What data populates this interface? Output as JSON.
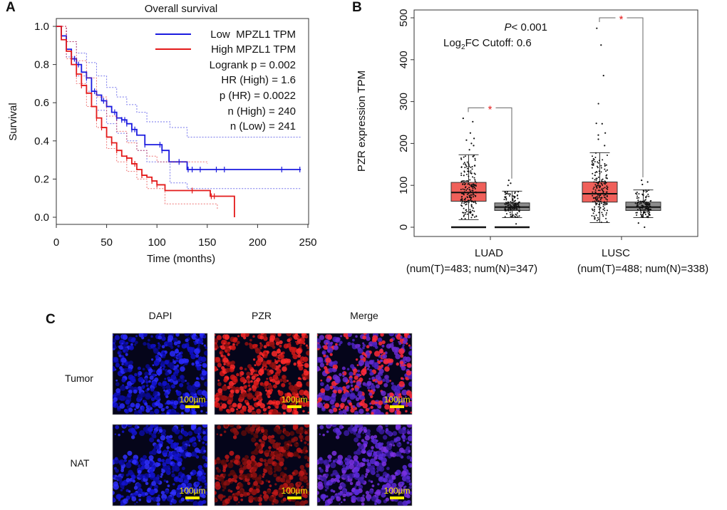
{
  "panels": {
    "a": "A",
    "b": "B",
    "c": "C"
  },
  "chart_data": [
    {
      "type": "line",
      "title": "Overall survival",
      "xlabel": "Time (months)",
      "ylabel": "Survival",
      "xlim": [
        0,
        250
      ],
      "ylim": [
        0,
        1
      ],
      "xticks": [
        "0",
        "50",
        "100",
        "150",
        "200",
        "250"
      ],
      "yticks": [
        "0.0",
        "0.2",
        "0.4",
        "0.6",
        "0.8",
        "1.0"
      ],
      "legend_position": "top-right",
      "legend": [
        "Low  MPZL1 TPM",
        "High MPZL1 TPM"
      ],
      "stats": [
        "Logrank p = 0.002",
        "HR (High) = 1.6",
        "p (HR) = 0.0022",
        "n (High) = 240",
        "n (Low) = 241"
      ],
      "colors": {
        "low": "#1a1adf",
        "high": "#e31a1a"
      },
      "series": [
        {
          "name": "Low  MPZL1 TPM",
          "x": [
            0,
            5,
            10,
            15,
            20,
            25,
            30,
            35,
            40,
            45,
            50,
            55,
            60,
            65,
            70,
            75,
            80,
            88,
            105,
            112,
            130,
            243
          ],
          "y": [
            1,
            0.95,
            0.88,
            0.83,
            0.8,
            0.76,
            0.73,
            0.66,
            0.64,
            0.61,
            0.58,
            0.55,
            0.52,
            0.51,
            0.49,
            0.46,
            0.43,
            0.38,
            0.35,
            0.29,
            0.25,
            0.25
          ],
          "censored": [
            18,
            20,
            22,
            30,
            35,
            38,
            47,
            58,
            60,
            65,
            68,
            70,
            75,
            78,
            88,
            103,
            105,
            122,
            131,
            135,
            143,
            159,
            167,
            224,
            242
          ],
          "ci_upper": {
            "x": [
              0,
              10,
              20,
              30,
              40,
              50,
              60,
              70,
              80,
              90,
              113,
              130,
              243
            ],
            "y": [
              1,
              0.92,
              0.86,
              0.81,
              0.74,
              0.68,
              0.63,
              0.59,
              0.55,
              0.5,
              0.47,
              0.42,
              0.42
            ]
          },
          "ci_lower": {
            "x": [
              0,
              10,
              20,
              30,
              40,
              50,
              60,
              70,
              80,
              90,
              113,
              130,
              243
            ],
            "y": [
              1,
              0.84,
              0.74,
              0.66,
              0.56,
              0.49,
              0.44,
              0.4,
              0.35,
              0.29,
              0.18,
              0.15,
              0.15
            ]
          }
        },
        {
          "name": "High MPZL1 TPM",
          "x": [
            0,
            5,
            10,
            15,
            20,
            25,
            30,
            35,
            40,
            45,
            50,
            55,
            60,
            65,
            70,
            75,
            80,
            85,
            90,
            95,
            100,
            108,
            153,
            177,
            177
          ],
          "y": [
            1,
            0.93,
            0.87,
            0.8,
            0.75,
            0.69,
            0.65,
            0.58,
            0.52,
            0.47,
            0.42,
            0.39,
            0.35,
            0.32,
            0.31,
            0.28,
            0.25,
            0.22,
            0.21,
            0.19,
            0.17,
            0.14,
            0.11,
            0.11,
            0
          ],
          "censored": [
            20,
            25,
            40,
            45,
            55,
            60,
            70,
            78,
            85,
            95,
            100,
            135,
            154,
            157
          ],
          "ci_upper": {
            "x": [
              0,
              10,
              20,
              30,
              40,
              50,
              60,
              70,
              80,
              90,
              100,
              150
            ],
            "y": [
              1,
              0.92,
              0.82,
              0.73,
              0.63,
              0.53,
              0.45,
              0.39,
              0.35,
              0.32,
              0.29,
              0.28
            ]
          },
          "ci_lower": {
            "x": [
              0,
              10,
              20,
              30,
              40,
              50,
              60,
              70,
              80,
              90,
              108,
              153,
              160
            ],
            "y": [
              1,
              0.83,
              0.7,
              0.58,
              0.47,
              0.36,
              0.29,
              0.24,
              0.2,
              0.15,
              0.07,
              0.07,
              0.04
            ]
          }
        }
      ]
    },
    {
      "type": "box",
      "ylabel": "PZR expression TPM",
      "ylim": [
        0,
        500
      ],
      "yticks": [
        "0",
        "100",
        "200",
        "300",
        "400",
        "500"
      ],
      "annotation_p": "< 0.001",
      "annotation_p_italic": "P",
      "annotation_fc_prefix": "Log",
      "annotation_fc_sub": "2",
      "annotation_fc_suffix": "FC Cutoff: 0.6",
      "significance": "*",
      "colors": {
        "tumor": "#f0605a",
        "normal": "#8c8c8c",
        "star": "#e31a1a"
      },
      "categories": [
        {
          "name": "LUAD",
          "sub": "(num(T)=483; num(N)=347)",
          "tumor": {
            "n": 483,
            "min": 18,
            "q1": 62,
            "median": 83,
            "q3": 107,
            "max": 173,
            "outliers": [
              260,
              252,
              225,
              212,
              208,
              200,
              195,
              185
            ],
            "zero_bar": true
          },
          "normal": {
            "n": 347,
            "min": 23,
            "q1": 40,
            "median": 48,
            "q3": 58,
            "max": 86,
            "outliers": [
              112,
              105,
              100,
              8
            ],
            "zero_bar": true
          },
          "bracket_y": 285
        },
        {
          "name": "LUSC",
          "sub": "(num(T)=488; num(N)=338)",
          "tumor": {
            "n": 488,
            "min": 11,
            "q1": 60,
            "median": 80,
            "q3": 108,
            "max": 178,
            "outliers": [
              475,
              435,
              362,
              295,
              248,
              247,
              225,
              220,
              210,
              195
            ],
            "zero_bar": false
          },
          "normal": {
            "n": 338,
            "min": 23,
            "q1": 40,
            "median": 48,
            "q3": 60,
            "max": 89,
            "outliers": [
              112,
              108,
              102,
              10,
              0
            ],
            "zero_bar": false
          },
          "bracket_y": 500
        }
      ]
    }
  ],
  "micrographs": {
    "columns": [
      "DAPI",
      "PZR",
      "Merge"
    ],
    "rows": [
      "Tumor",
      "NAT"
    ],
    "scale_bar": "100µm"
  }
}
